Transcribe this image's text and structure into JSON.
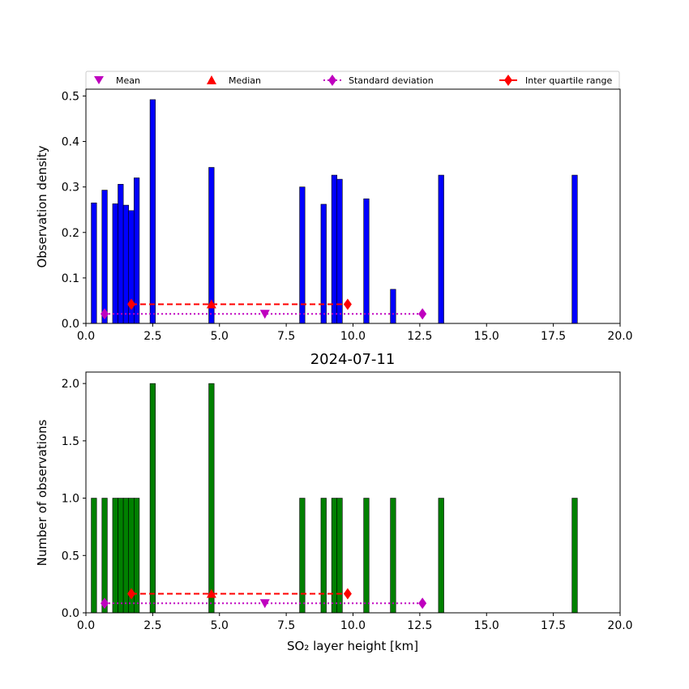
{
  "legend": {
    "items": [
      {
        "label": "Mean",
        "marker": "triangle-down",
        "color": "#bf00bf",
        "line": "none"
      },
      {
        "label": "Median",
        "marker": "triangle-up",
        "color": "#ff0000",
        "line": "none"
      },
      {
        "label": "Standard deviation",
        "marker": "diamond",
        "color": "#bf00bf",
        "line": "dotted"
      },
      {
        "label": "Inter quartile range",
        "marker": "diamond",
        "color": "#ff0000",
        "line": "dashed"
      }
    ],
    "placement": "top"
  },
  "chart_data": [
    {
      "type": "bar",
      "title": "",
      "xlabel": "",
      "ylabel": "Observation density",
      "xlim": [
        0,
        20
      ],
      "ylim": [
        0,
        0.515
      ],
      "xticks": [
        "0.0",
        "2.5",
        "5.0",
        "7.5",
        "10.0",
        "12.5",
        "15.0",
        "17.5",
        "20.0"
      ],
      "yticks": [
        "0.0",
        "0.1",
        "0.2",
        "0.3",
        "0.4",
        "0.5"
      ],
      "ytick_values": [
        0,
        0.1,
        0.2,
        0.3,
        0.4,
        0.5
      ],
      "bar_color": "#0000ff",
      "bar_width": 0.2,
      "bars": [
        {
          "x": 0.3,
          "value": 0.265
        },
        {
          "x": 0.7,
          "value": 0.293
        },
        {
          "x": 1.1,
          "value": 0.263
        },
        {
          "x": 1.3,
          "value": 0.306
        },
        {
          "x": 1.5,
          "value": 0.26
        },
        {
          "x": 1.7,
          "value": 0.248
        },
        {
          "x": 1.9,
          "value": 0.32
        },
        {
          "x": 2.5,
          "value": 0.492
        },
        {
          "x": 4.7,
          "value": 0.343
        },
        {
          "x": 8.1,
          "value": 0.3
        },
        {
          "x": 8.9,
          "value": 0.262
        },
        {
          "x": 9.3,
          "value": 0.326
        },
        {
          "x": 9.5,
          "value": 0.317
        },
        {
          "x": 10.5,
          "value": 0.274
        },
        {
          "x": 11.5,
          "value": 0.075
        },
        {
          "x": 13.3,
          "value": 0.326
        },
        {
          "x": 18.3,
          "value": 0.326
        }
      ],
      "stats": {
        "mean": {
          "x": 6.7,
          "y": 0.021
        },
        "median": {
          "x": 4.7,
          "y": 0.042
        },
        "std_range": {
          "x": [
            0.7,
            12.6
          ],
          "y": 0.021
        },
        "iqr_range": {
          "x": [
            1.7,
            9.8
          ],
          "y": 0.042
        }
      }
    },
    {
      "type": "bar",
      "title": "2024-07-11",
      "xlabel": "SO₂ layer height [km]",
      "ylabel": "Number of observations",
      "xlim": [
        0,
        20
      ],
      "ylim": [
        0,
        2.1
      ],
      "xticks": [
        "0.0",
        "2.5",
        "5.0",
        "7.5",
        "10.0",
        "12.5",
        "15.0",
        "17.5",
        "20.0"
      ],
      "yticks": [
        "0.0",
        "0.5",
        "1.0",
        "1.5",
        "2.0"
      ],
      "ytick_values": [
        0,
        0.5,
        1.0,
        1.5,
        2.0
      ],
      "bar_color": "#008000",
      "bar_width": 0.2,
      "bars": [
        {
          "x": 0.3,
          "value": 1
        },
        {
          "x": 0.7,
          "value": 1
        },
        {
          "x": 1.1,
          "value": 1
        },
        {
          "x": 1.3,
          "value": 1
        },
        {
          "x": 1.5,
          "value": 1
        },
        {
          "x": 1.7,
          "value": 1
        },
        {
          "x": 1.9,
          "value": 1
        },
        {
          "x": 2.5,
          "value": 2
        },
        {
          "x": 4.7,
          "value": 2
        },
        {
          "x": 8.1,
          "value": 1
        },
        {
          "x": 8.9,
          "value": 1
        },
        {
          "x": 9.3,
          "value": 1
        },
        {
          "x": 9.5,
          "value": 1
        },
        {
          "x": 10.5,
          "value": 1
        },
        {
          "x": 11.5,
          "value": 1
        },
        {
          "x": 13.3,
          "value": 1
        },
        {
          "x": 18.3,
          "value": 1
        }
      ],
      "stats": {
        "mean": {
          "x": 6.7,
          "y": 0.083
        },
        "median": {
          "x": 4.7,
          "y": 0.166
        },
        "std_range": {
          "x": [
            0.7,
            12.6
          ],
          "y": 0.083
        },
        "iqr_range": {
          "x": [
            1.7,
            9.8
          ],
          "y": 0.166
        }
      }
    }
  ]
}
